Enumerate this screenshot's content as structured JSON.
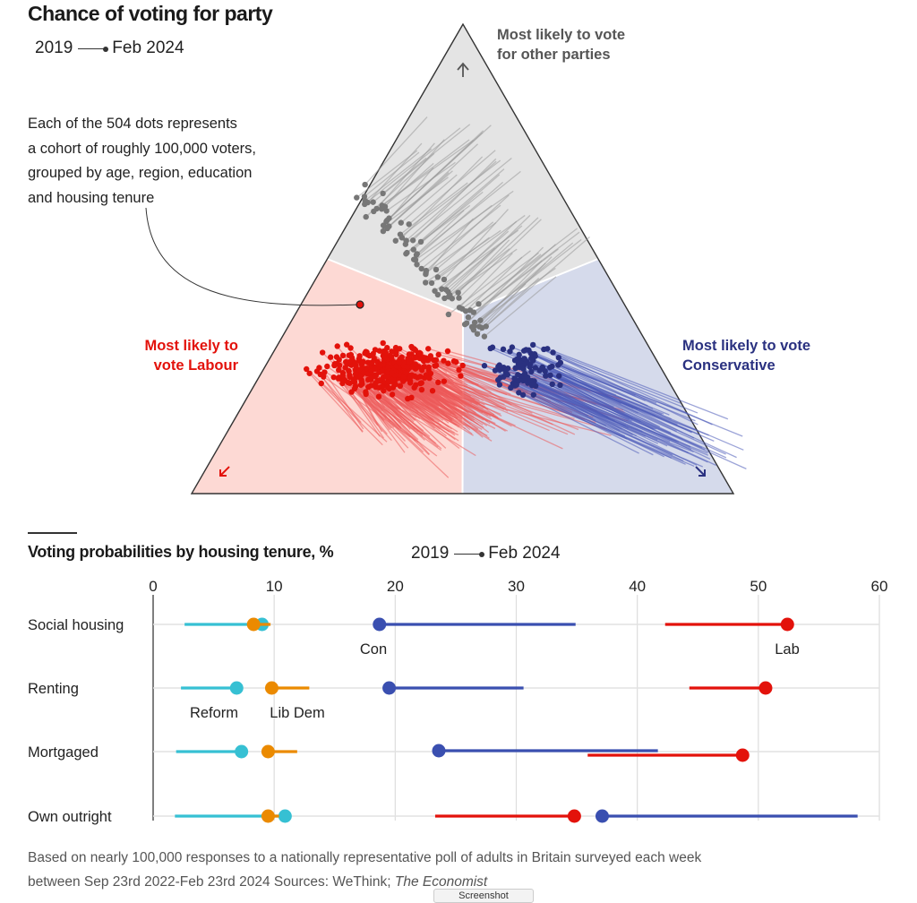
{
  "header": {
    "title": "Chance of voting for party",
    "legend_from": "2019",
    "legend_to": "Feb 2024"
  },
  "annotation": {
    "lines": [
      "Each of the 504 dots represents",
      "a cohort of roughly 100,000 voters,",
      "grouped by age, region, education",
      "and housing tenure"
    ]
  },
  "corners": {
    "top": [
      "Most likely to vote",
      "for other parties"
    ],
    "labour": [
      "Most likely to",
      "vote Labour"
    ],
    "conservative": [
      "Most likely to vote",
      "Conservative"
    ]
  },
  "colors": {
    "labour": "#e3120b",
    "conservative": "#2a3180",
    "conservative_line": "#3a4fb0",
    "other": "#777777",
    "reform": "#36c0d3",
    "libdem": "#eb8a00",
    "labour_region": "#fdd9d4",
    "conservative_region": "#d5daeb",
    "other_region": "#e4e4e4"
  },
  "subchart": {
    "title": "Voting probabilities by housing tenure, %",
    "legend_from": "2019",
    "legend_to": "Feb 2024"
  },
  "footnote": {
    "text": "Based on nearly 100,000 responses to a nationally representative poll of adults in Britain surveyed each week between Sep 23rd 2022-Feb 23rd 2024 Sources: WeThink; ",
    "source_italic": "The Economist"
  },
  "overlay": {
    "screenshot_button": "Screenshot"
  },
  "chart_data": [
    {
      "type": "scatter",
      "title": "Chance of voting for party",
      "subtitle": "2019 → Feb 2024",
      "description": "Ternary plot; 504 cohorts each shown as a line from 2019 position to a dot at Feb 2024 position. Axes: Labour (bottom-left), Conservative (bottom-right), other parties (top).",
      "point_count": 504,
      "regions": [
        "Most likely to vote Labour",
        "Most likely to vote Conservative",
        "Most likely to vote for other parties"
      ],
      "clusters": [
        {
          "name": "Labour-leaning cohorts (Feb 2024)",
          "share_estimate": {
            "labour": [
              0.45,
              0.7
            ],
            "conservative": [
              0.1,
              0.35
            ],
            "other": [
              0.1,
              0.3
            ]
          }
        },
        {
          "name": "Conservative-leaning cohorts (Feb 2024)",
          "share_estimate": {
            "labour": [
              0.25,
              0.4
            ],
            "conservative": [
              0.33,
              0.5
            ],
            "other": [
              0.15,
              0.3
            ]
          }
        },
        {
          "name": "Other-party cohorts (Feb 2024)",
          "share_estimate": {
            "labour": [
              0.2,
              0.45
            ],
            "conservative": [
              0.1,
              0.3
            ],
            "other": [
              0.35,
              0.65
            ]
          }
        }
      ],
      "movement_2019_to_2024": "Most cohorts shifted away from the Conservative corner toward Labour and other parties"
    },
    {
      "type": "dumbbell",
      "title": "Voting probabilities by housing tenure, %",
      "xlim": [
        0,
        60
      ],
      "xticks": [
        0,
        10,
        20,
        30,
        40,
        50,
        60
      ],
      "categories": [
        "Social housing",
        "Renting",
        "Mortgaged",
        "Own outright"
      ],
      "series": [
        {
          "name": "Reform",
          "color": "#36c0d3",
          "from_2019": [
            2.6,
            2.3,
            1.9,
            1.8
          ],
          "to_feb2024": [
            9.0,
            6.9,
            7.3,
            10.9
          ]
        },
        {
          "name": "Lib Dem",
          "color": "#eb8a00",
          "from_2019": [
            9.7,
            12.9,
            11.9,
            10.4
          ],
          "to_feb2024": [
            8.3,
            9.8,
            9.5,
            9.5
          ]
        },
        {
          "name": "Con",
          "color": "#3a4fb0",
          "from_2019": [
            34.9,
            30.6,
            41.7,
            58.2
          ],
          "to_feb2024": [
            18.7,
            19.5,
            23.6,
            37.1
          ]
        },
        {
          "name": "Lab",
          "color": "#e3120b",
          "from_2019": [
            42.3,
            44.3,
            35.9,
            23.3
          ],
          "to_feb2024": [
            52.4,
            50.6,
            48.7,
            34.8
          ]
        }
      ],
      "series_labels": [
        {
          "series": "Con",
          "category": "Social housing"
        },
        {
          "series": "Lab",
          "category": "Social housing"
        },
        {
          "series": "Reform",
          "category": "Renting"
        },
        {
          "series": "Lib Dem",
          "category": "Renting"
        }
      ]
    }
  ]
}
